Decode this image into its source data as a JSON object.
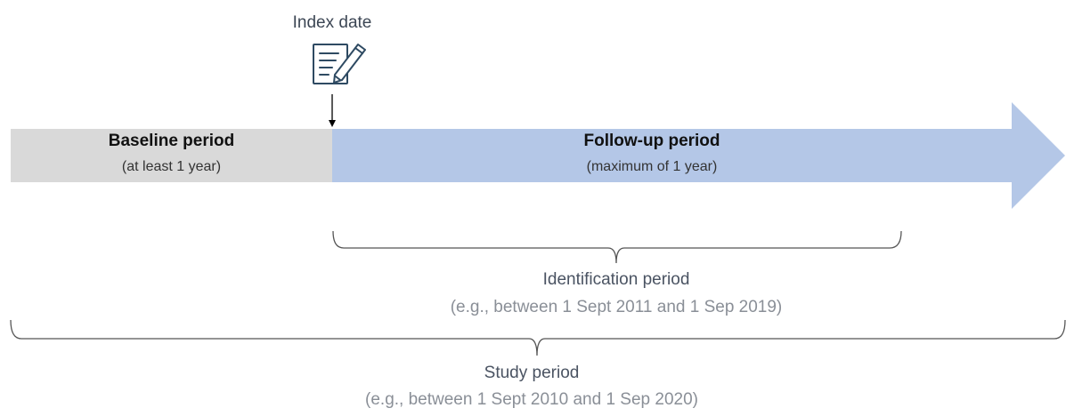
{
  "index_date": {
    "label": "Index date",
    "icon": "document-with-pen-icon"
  },
  "baseline_period": {
    "title": "Baseline period",
    "subtitle": "(at least 1 year)"
  },
  "followup_period": {
    "title": "Follow-up period",
    "subtitle": "(maximum of 1 year)"
  },
  "identification_period": {
    "title": "Identification period",
    "subtitle": "(e.g., between 1 Sept 2011 and 1 Sep 2019)"
  },
  "study_period": {
    "title": "Study period",
    "subtitle": "(e.g., between 1 Sept 2010 and 1 Sep 2020)"
  },
  "colors": {
    "baseline_bar": "#d9d9d9",
    "followup_arrow": "#b4c7e7",
    "icon_stroke": "#2e4a62",
    "bracket_stroke": "#555555"
  }
}
